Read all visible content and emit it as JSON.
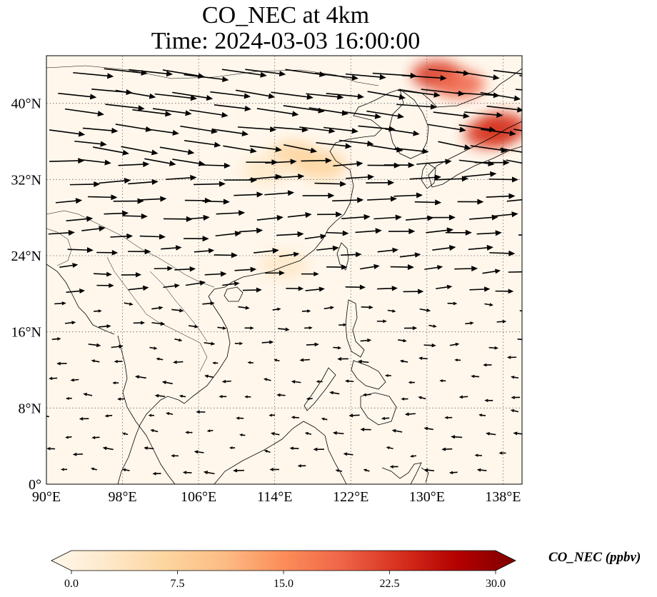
{
  "title": {
    "line1": "CO_NEC at 4km",
    "line2": "Time: 2024-03-03 16:00:00"
  },
  "map": {
    "projection": "PlateCarree",
    "lon_range": [
      90,
      140
    ],
    "lat_range": [
      0,
      45
    ],
    "lon_ticks": [
      {
        "value": 90,
        "label": "90°E"
      },
      {
        "value": 98,
        "label": "98°E"
      },
      {
        "value": 106,
        "label": "106°E"
      },
      {
        "value": 114,
        "label": "114°E"
      },
      {
        "value": 122,
        "label": "122°E"
      },
      {
        "value": 130,
        "label": "130°E"
      },
      {
        "value": 138,
        "label": "138°E"
      }
    ],
    "lat_ticks": [
      {
        "value": 0,
        "label": "0°"
      },
      {
        "value": 8,
        "label": "8°N"
      },
      {
        "value": 16,
        "label": "16°N"
      },
      {
        "value": 24,
        "label": "24°N"
      },
      {
        "value": 32,
        "label": "32°N"
      },
      {
        "value": 40,
        "label": "40°N"
      }
    ],
    "gridlines": "dotted",
    "background_color": "#fff7ec",
    "plumes": [
      {
        "lon": 131.0,
        "lat": 43.0,
        "value": 22
      },
      {
        "lon": 133.5,
        "lat": 42.0,
        "value": 20
      },
      {
        "lon": 136.5,
        "lat": 36.8,
        "value": 24
      },
      {
        "lon": 138.0,
        "lat": 37.5,
        "value": 21
      },
      {
        "lon": 116.0,
        "lat": 34.5,
        "value": 8
      },
      {
        "lon": 119.0,
        "lat": 33.5,
        "value": 6
      },
      {
        "lon": 113.0,
        "lat": 33.0,
        "value": 5
      },
      {
        "lon": 115.0,
        "lat": 23.0,
        "value": 4
      }
    ],
    "wind": {
      "style": "quiver",
      "color": "#000000"
    }
  },
  "colorbar": {
    "label": "CO_NEC (ppbv)",
    "min": 0.0,
    "max": 30.0,
    "extend": "both",
    "cmap": "OrRd",
    "colors": [
      "#fff7ec",
      "#fee8c8",
      "#fdd49e",
      "#fdbb84",
      "#fc8d59",
      "#ef6548",
      "#d7301f",
      "#b30000",
      "#7f0000"
    ],
    "ticks": [
      {
        "value": 0,
        "label": "0.0"
      },
      {
        "value": 7.5,
        "label": "7.5"
      },
      {
        "value": 15,
        "label": "15.0"
      },
      {
        "value": 22.5,
        "label": "22.5"
      },
      {
        "value": 30,
        "label": "30.0"
      }
    ]
  }
}
